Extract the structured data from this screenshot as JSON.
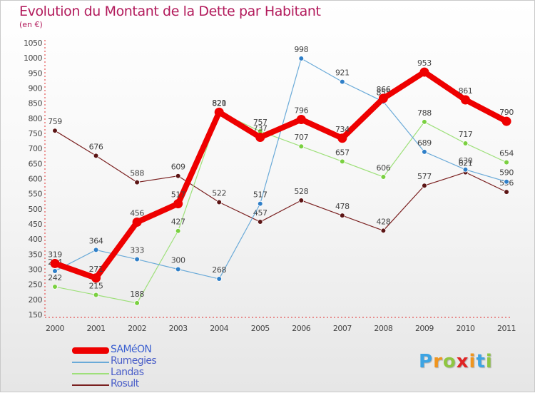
{
  "title": "Evolution du Montant de la Dette par Habitant",
  "subtitle": "(en €)",
  "logo": {
    "letters": [
      "P",
      "r",
      "o",
      "x",
      "i",
      "t",
      "i"
    ],
    "colors": [
      "#3da4e3",
      "#f0951e",
      "#8fc641",
      "#e02424",
      "#f0951e",
      "#3da4e3",
      "#8fc641"
    ]
  },
  "chart_data": {
    "type": "line",
    "x": [
      "2000",
      "2001",
      "2002",
      "2003",
      "2004",
      "2005",
      "2006",
      "2007",
      "2008",
      "2009",
      "2010",
      "2011"
    ],
    "ylim": [
      150,
      1050
    ],
    "yticks": [
      150,
      200,
      250,
      300,
      350,
      400,
      450,
      500,
      550,
      600,
      650,
      700,
      750,
      800,
      850,
      900,
      950,
      1000,
      1050
    ],
    "grid": false,
    "legend_position": "bottom-left",
    "series": [
      {
        "name": "Rosult",
        "color": "#7a2020",
        "marker": "#5c1515",
        "width": 1.2,
        "values": [
          759,
          676,
          588,
          609,
          522,
          457,
          528,
          478,
          428,
          577,
          621,
          556
        ]
      },
      {
        "name": "Landas",
        "color": "#9ee07a",
        "marker": "#7ad040",
        "width": 1.2,
        "values": [
          242,
          215,
          188,
          427,
          821,
          757,
          707,
          657,
          606,
          788,
          717,
          654
        ]
      },
      {
        "name": "Rumegies",
        "color": "#6aaad8",
        "marker": "#2f7fc8",
        "width": 1.2,
        "values": [
          294,
          364,
          333,
          300,
          268,
          517,
          998,
          921,
          855,
          689,
          630,
          590
        ]
      },
      {
        "name": "SAMéON",
        "color": "#ee0000",
        "marker": "#ee0000",
        "width": 8,
        "values": [
          319,
          271,
          456,
          517,
          820,
          737,
          796,
          734,
          866,
          953,
          861,
          790
        ]
      }
    ]
  },
  "legend": [
    {
      "name": "SAMéON",
      "color": "#ee0000",
      "thick": true
    },
    {
      "name": "Rumegies",
      "color": "#6aaad8",
      "thick": false
    },
    {
      "name": "Landas",
      "color": "#9ee07a",
      "thick": false
    },
    {
      "name": "Rosult",
      "color": "#7a2020",
      "thick": false
    }
  ]
}
